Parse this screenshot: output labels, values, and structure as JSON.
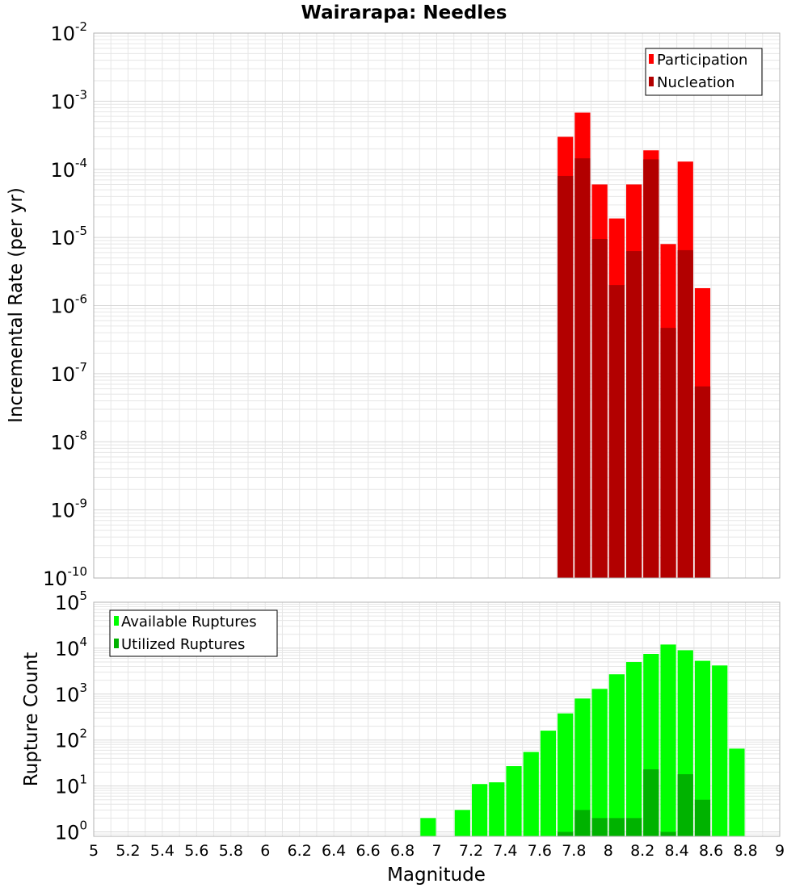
{
  "title": "Wairarapa: Needles",
  "colors": {
    "participation": "#ff0000",
    "nucleation": "#b20000",
    "available": "#00ff00",
    "utilized": "#00b200",
    "grid": "#e6e6e6",
    "frame": "#b3b3b3"
  },
  "chart_data": [
    {
      "type": "bar",
      "title": "Wairarapa: Needles",
      "ylabel": "Incremental Rate (per yr)",
      "xlabel": "",
      "yscale": "log",
      "xlim": [
        5,
        9
      ],
      "ylim": [
        1e-10,
        0.01
      ],
      "ytick_exponents": [
        -10,
        -9,
        -8,
        -7,
        -6,
        -5,
        -4,
        -3,
        -2
      ],
      "grid": true,
      "legend": "top-right",
      "legend_entries": [
        "Participation",
        "Nucleation"
      ],
      "bin_width": 0.1,
      "x": [
        7.75,
        7.85,
        7.95,
        8.05,
        8.15,
        8.25,
        8.35,
        8.45,
        8.55
      ],
      "series": [
        {
          "name": "Participation",
          "color": "#ff0000",
          "values": [
            0.0003,
            0.00068,
            6e-05,
            1.9e-05,
            6e-05,
            0.00019,
            8e-06,
            0.00013,
            1.8e-06
          ]
        },
        {
          "name": "Nucleation",
          "color": "#b20000",
          "values": [
            8e-05,
            0.000145,
            9.5e-06,
            2e-06,
            6.3e-06,
            0.00014,
            4.7e-07,
            6.5e-06,
            6.5e-08
          ]
        }
      ]
    },
    {
      "type": "bar",
      "title": "",
      "ylabel": "Rupture Count",
      "xlabel": "Magnitude",
      "yscale": "log",
      "xlim": [
        5,
        9
      ],
      "ylim": [
        0.8,
        100000.0
      ],
      "ytick_exponents": [
        0,
        1,
        2,
        3,
        4,
        5
      ],
      "x_ticks": [
        "5",
        "5.2",
        "5.4",
        "5.6",
        "5.8",
        "6",
        "6.2",
        "6.4",
        "6.6",
        "6.8",
        "7",
        "7.2",
        "7.4",
        "7.6",
        "7.8",
        "8",
        "8.2",
        "8.4",
        "8.6",
        "8.8",
        "9"
      ],
      "grid": true,
      "legend": "top-left",
      "legend_entries": [
        "Available Ruptures",
        "Utilized Ruptures"
      ],
      "bin_width": 0.1,
      "x": [
        6.95,
        7.15,
        7.25,
        7.35,
        7.45,
        7.55,
        7.65,
        7.75,
        7.85,
        7.95,
        8.05,
        8.15,
        8.25,
        8.35,
        8.45,
        8.55,
        8.65,
        8.75
      ],
      "series": [
        {
          "name": "Available Ruptures",
          "color": "#00ff00",
          "values": [
            2,
            3,
            11,
            12,
            27,
            55,
            160,
            380,
            800,
            1300,
            2700,
            5000,
            7500,
            12000,
            9000,
            5300,
            4200,
            65
          ]
        },
        {
          "name": "Utilized Ruptures",
          "color": "#00b200",
          "values": [
            null,
            null,
            null,
            null,
            null,
            null,
            null,
            1,
            3,
            2,
            2,
            2,
            23,
            1,
            18,
            5,
            null,
            null
          ]
        }
      ]
    }
  ]
}
